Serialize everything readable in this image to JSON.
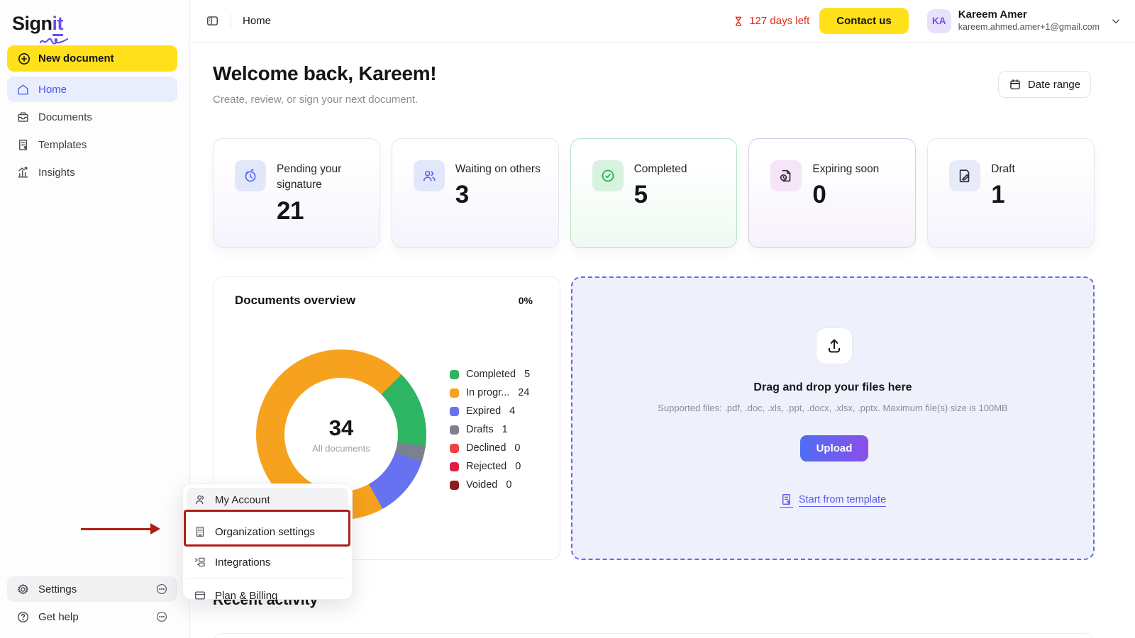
{
  "brand": {
    "name_prefix": "Sign",
    "name_suffix": "it"
  },
  "sidebar": {
    "new_document_label": "New document",
    "items": [
      {
        "label": "Home",
        "active": true
      },
      {
        "label": "Documents",
        "active": false
      },
      {
        "label": "Templates",
        "active": false
      },
      {
        "label": "Insights",
        "active": false
      }
    ],
    "footer_items": [
      {
        "label": "Settings"
      },
      {
        "label": "Get help"
      }
    ]
  },
  "topbar": {
    "breadcrumb": "Home",
    "days_left": "127 days left",
    "contact_label": "Contact us",
    "user": {
      "initials": "KA",
      "name": "Kareem Amer",
      "email": "kareem.ahmed.amer+1@gmail.com"
    }
  },
  "main": {
    "title": "Welcome back, Kareem!",
    "subtitle": "Create, review, or sign your next document.",
    "date_range_label": "Date range",
    "stats": [
      {
        "label": "Pending your signature",
        "value": "21"
      },
      {
        "label": "Waiting on others",
        "value": "3"
      },
      {
        "label": "Completed",
        "value": "5"
      },
      {
        "label": "Expiring soon",
        "value": "0"
      },
      {
        "label": "Draft",
        "value": "1"
      }
    ],
    "recent_activity_title": "Recent activity"
  },
  "chart_data": {
    "type": "pie",
    "variant": "donut",
    "title": "Documents overview",
    "percent_label": "0%",
    "center_value": "34",
    "center_label": "All documents",
    "start_angle_deg": 45,
    "draw_order": [
      "Completed",
      "Drafts",
      "Expired",
      "In progr...",
      "Declined",
      "Rejected",
      "Voided"
    ],
    "legend_position": "right",
    "series": [
      {
        "name": "Completed",
        "value": 5,
        "color": "#2eb564"
      },
      {
        "name": "In progr...",
        "value": 24,
        "color": "#f6a21e"
      },
      {
        "name": "Expired",
        "value": 4,
        "color": "#6672ef"
      },
      {
        "name": "Drafts",
        "value": 1,
        "color": "#7b8190"
      },
      {
        "name": "Declined",
        "value": 0,
        "color": "#ee4444"
      },
      {
        "name": "Rejected",
        "value": 0,
        "color": "#e11d48"
      },
      {
        "name": "Voided",
        "value": 0,
        "color": "#8f1d1d"
      }
    ]
  },
  "upload": {
    "title": "Drag and drop your files here",
    "subtitle": "Supported files: .pdf, .doc, .xls, .ppt, .docx, .xlsx, .pptx. Maximum file(s) size is 100MB",
    "button_label": "Upload",
    "template_link": "Start from template"
  },
  "context_menu": {
    "items": [
      {
        "label": "My Account"
      },
      {
        "label": "Organization settings"
      },
      {
        "label": "Integrations"
      },
      {
        "label": "Plan & Billing"
      }
    ]
  },
  "colors": {
    "brand_yellow": "#ffe01a",
    "accent_indigo": "#4356f0",
    "alert_red": "#e02a1d",
    "annotation_red": "#ae1e17",
    "upload_gradient_start": "#4f6df5",
    "upload_gradient_end": "#8b4fe8"
  }
}
